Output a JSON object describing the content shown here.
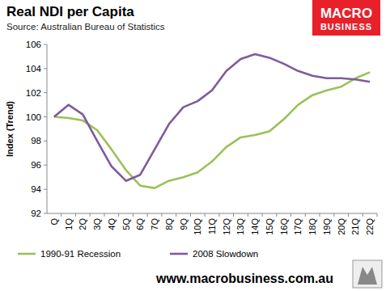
{
  "chart_data": {
    "type": "line",
    "title": "Real NDI per Capita",
    "subtitle": "Source: Australian Bureau of Statistics",
    "y_label": "Index (Trend)",
    "annotations": [
      "MACRO",
      "BUSINESS",
      "www.macrobusiness.com.au"
    ],
    "categories": [
      "Q",
      "1Q",
      "2Q",
      "3Q",
      "4Q",
      "5Q",
      "6Q",
      "7Q",
      "8Q",
      "9Q",
      "10Q",
      "11Q",
      "12Q",
      "13Q",
      "14Q",
      "15Q",
      "16Q",
      "17Q",
      "18Q",
      "19Q",
      "20Q",
      "21Q",
      "22Q"
    ],
    "series": [
      {
        "name": "1990-91 Recession",
        "color": "#9bc158",
        "values": [
          100,
          99.9,
          99.7,
          98.9,
          97.3,
          95.6,
          94.3,
          94.1,
          94.7,
          95.0,
          95.4,
          96.3,
          97.5,
          98.3,
          98.5,
          98.8,
          99.8,
          101.0,
          101.8,
          102.2,
          102.5,
          103.2,
          103.7
        ]
      },
      {
        "name": "2008 Slowdown",
        "color": "#7d5b9f",
        "values": [
          100,
          101.0,
          100.2,
          98.0,
          95.9,
          94.7,
          95.2,
          97.3,
          99.4,
          100.8,
          101.3,
          102.2,
          103.8,
          104.8,
          105.2,
          104.9,
          104.4,
          103.8,
          103.4,
          103.2,
          103.2,
          103.1,
          102.9
        ]
      }
    ],
    "ylim": [
      92,
      106
    ],
    "yticks": [
      92,
      94,
      96,
      98,
      100,
      102,
      104,
      106
    ],
    "grid": false,
    "legend": "bottom"
  }
}
